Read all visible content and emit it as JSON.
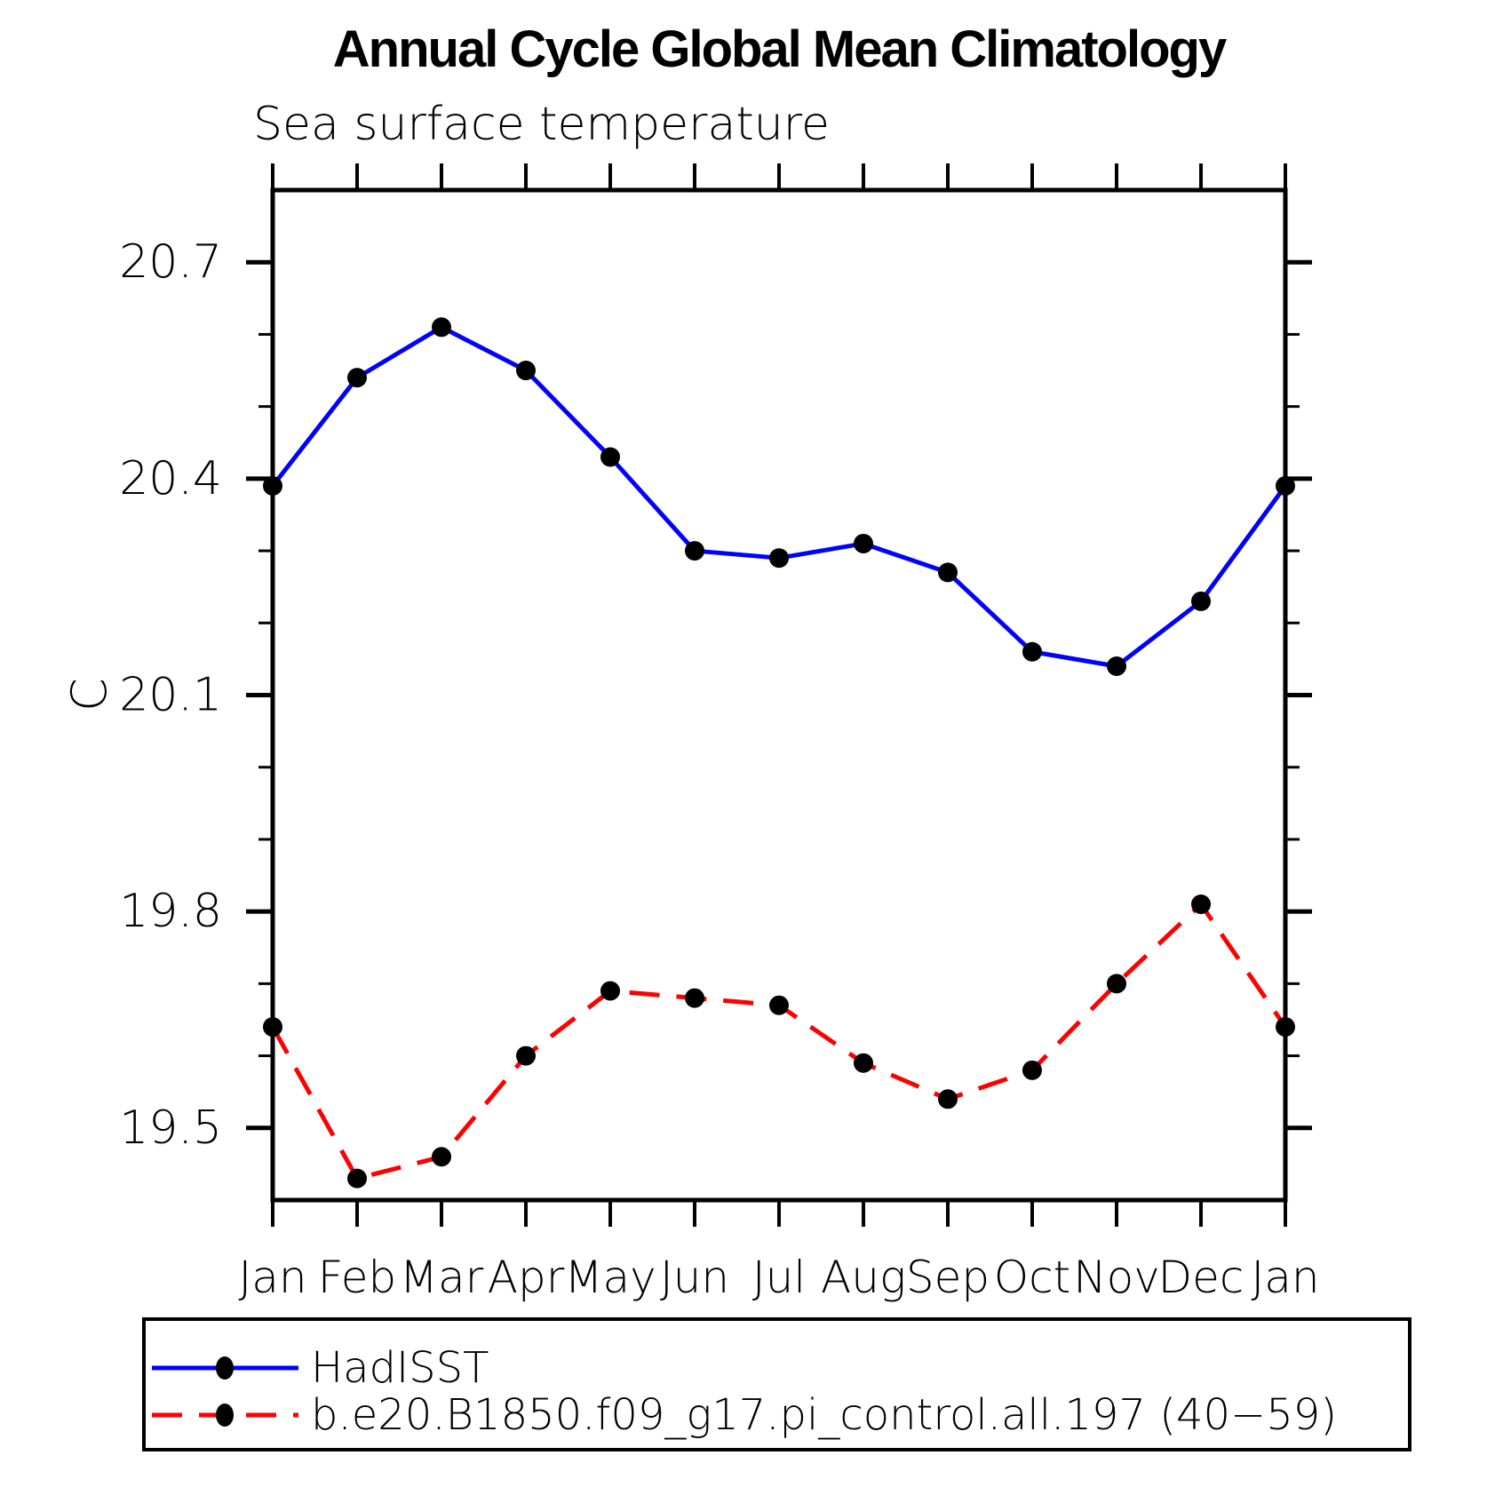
{
  "title": "Annual Cycle Global Mean Climatology",
  "subtitle": "Sea surface temperature",
  "y_axis_label": "C",
  "chart_data": {
    "type": "line",
    "title": "Annual Cycle Global Mean Climatology",
    "subtitle": "Sea surface temperature",
    "ylabel": "C",
    "xlabel": "",
    "categories": [
      "Jan",
      "Feb",
      "Mar",
      "Apr",
      "May",
      "Jun",
      "Jul",
      "Aug",
      "Sep",
      "Oct",
      "Nov",
      "Dec",
      "Jan"
    ],
    "series": [
      {
        "name": "HadISST",
        "color": "#0000ff",
        "line": "solid",
        "marker": "filled-circle",
        "marker_color": "#000000",
        "values": [
          20.39,
          20.54,
          20.61,
          20.55,
          20.43,
          20.3,
          20.29,
          20.31,
          20.27,
          20.16,
          20.14,
          20.23,
          20.39
        ]
      },
      {
        "name": "b.e20.B1850.f09_g17.pi_control.all.197 (40−59)",
        "color": "#ff0000",
        "line": "dashed",
        "marker": "filled-circle",
        "marker_color": "#000000",
        "values": [
          19.64,
          19.43,
          19.46,
          19.6,
          19.69,
          19.68,
          19.67,
          19.59,
          19.54,
          19.58,
          19.7,
          19.81,
          19.64
        ]
      }
    ],
    "ylim": [
      19.4,
      20.8
    ],
    "ytick_minor_interval": 0.1,
    "ytick_labeled": [
      19.5,
      19.8,
      20.1,
      20.4,
      20.7
    ],
    "ytick_label_texts": [
      "19.5",
      "19.8",
      "20.1",
      "20.4",
      "20.7"
    ],
    "grid": false,
    "ticks": "outward-both-sides",
    "legend_position": "bottom-left-box"
  }
}
